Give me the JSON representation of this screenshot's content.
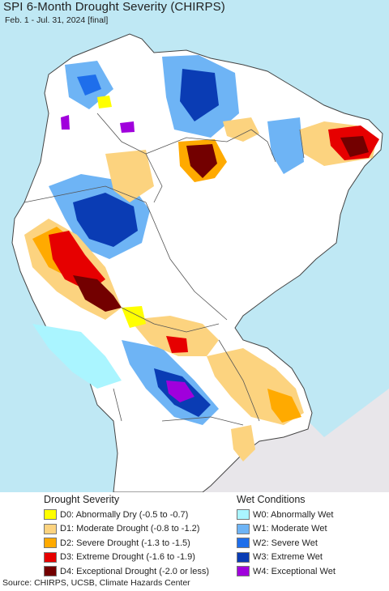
{
  "title": "SPI 6-Month Drought Severity (CHIRPS)",
  "subtitle": "Feb. 1 - Jul. 31, 2024 [final]",
  "colors": {
    "ocean": "#bfe8f4",
    "land": "#ffffff",
    "outside": "#e8e6ea",
    "border": "#555555"
  },
  "legend": {
    "drought": {
      "heading": "Drought Severity",
      "items": [
        {
          "label": "D0: Abnormally Dry (-0.5 to -0.7)",
          "color": "#ffff00"
        },
        {
          "label": "D1: Moderate Drought (-0.8 to -1.2)",
          "color": "#fcd37f"
        },
        {
          "label": "D2: Severe Drought (-1.3 to -1.5)",
          "color": "#ffaa00"
        },
        {
          "label": "D3: Extreme Drought (-1.6 to -1.9)",
          "color": "#e60000"
        },
        {
          "label": "D4: Exceptional Drought (-2.0 or less)",
          "color": "#730000"
        }
      ]
    },
    "wet": {
      "heading": "Wet Conditions",
      "items": [
        {
          "label": "W0: Abnormally Wet",
          "color": "#aaf5ff"
        },
        {
          "label": "W1: Moderate Wet",
          "color": "#6eb4f5"
        },
        {
          "label": "W2: Severe Wet",
          "color": "#1e6eeb"
        },
        {
          "label": "W3: Extreme Wet",
          "color": "#0a3cb4"
        },
        {
          "label": "W4: Exceptional Wet",
          "color": "#a000dc"
        }
      ]
    }
  },
  "source": "Source: CHIRPS, UCSB, Climate Hazards Center"
}
